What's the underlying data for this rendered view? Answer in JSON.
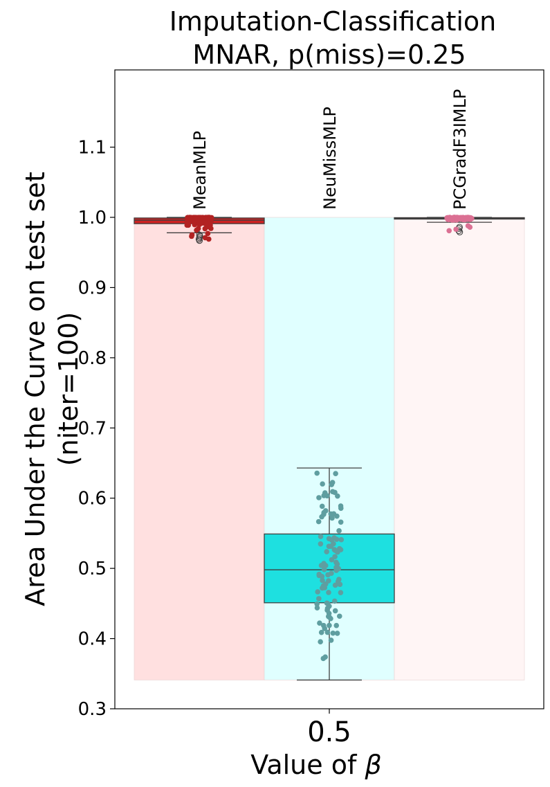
{
  "chart_data": {
    "type": "box",
    "title_line1": "Imputation-Classification",
    "title_line2": "MNAR, p(miss)=0.25",
    "ylabel_line1": "Area Under the Curve on test set",
    "ylabel_line2": "(niter=100)",
    "xlabel_text": "Value of ",
    "xlabel_symbol": "β",
    "x_category": "0.5",
    "ylim": [
      0.3,
      1.21
    ],
    "yticks": [
      0.3,
      0.4,
      0.5,
      0.6,
      0.7,
      0.8,
      0.9,
      1.0,
      1.1
    ],
    "ytick_labels": [
      "0.3",
      "0.4",
      "0.5",
      "0.6",
      "0.7",
      "0.8",
      "0.9",
      "1.0",
      "1.1"
    ],
    "band_range": [
      0.341,
      1.0
    ],
    "series": [
      {
        "name": "MeanMLP",
        "box_color": "#cc2222",
        "point_color": "#b22222",
        "band_color": "#ffe0e0",
        "whisker_low": 0.978,
        "q1": 0.991,
        "median": 0.996,
        "q3": 0.999,
        "whisker_high": 1.0,
        "outliers": [
          0.967,
          0.969,
          0.971,
          0.973,
          0.975
        ]
      },
      {
        "name": "NeuMissMLP",
        "box_color": "#1ee0e0",
        "point_color": "#5f9ea0",
        "band_color": "#e0ffff",
        "whisker_low": 0.341,
        "q1": 0.451,
        "median": 0.498,
        "q3": 0.549,
        "whisker_high": 0.643,
        "outliers": []
      },
      {
        "name": "PCGradF3IMLP",
        "box_color": "#ffc0cb",
        "point_color": "#db7093",
        "band_color": "#fff5f5",
        "whisker_low": 0.993,
        "q1": 0.998,
        "median": 0.9985,
        "q3": 0.9995,
        "whisker_high": 1.0,
        "outliers": [
          0.979,
          0.981,
          0.984,
          0.986
        ]
      }
    ]
  }
}
